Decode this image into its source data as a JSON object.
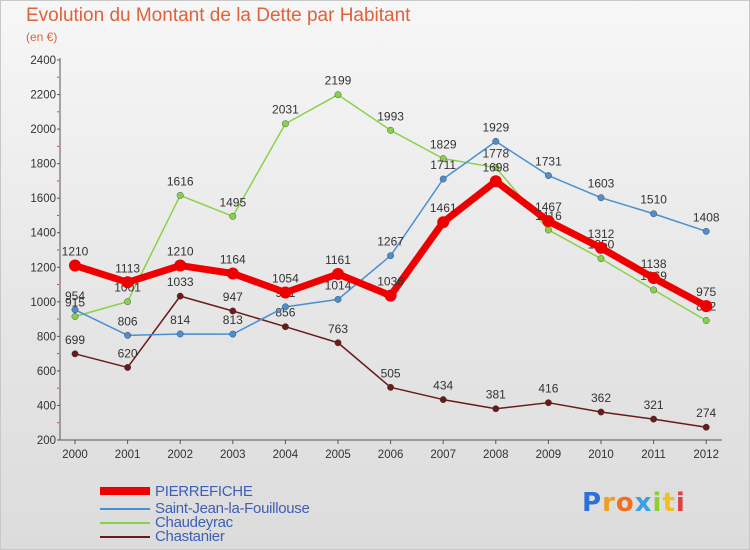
{
  "chart_data": {
    "type": "line",
    "title": "Evolution du Montant de la Dette par Habitant",
    "subtitle": "(en €)",
    "x": [
      "2000",
      "2001",
      "2002",
      "2003",
      "2004",
      "2005",
      "2006",
      "2007",
      "2008",
      "2009",
      "2010",
      "2011",
      "2012"
    ],
    "ylim": [
      200,
      2400
    ],
    "yticks": [
      "200",
      "400",
      "600",
      "800",
      "1000",
      "1200",
      "1400",
      "1600",
      "1800",
      "2000",
      "2200",
      "2400"
    ],
    "grid": false,
    "legend_position": "bottom-left",
    "series": [
      {
        "name": "Chastanier",
        "color": "#6b1a1a",
        "width": 1.5,
        "values": [
          699,
          620,
          1033,
          947,
          856,
          763,
          505,
          434,
          381,
          416,
          362,
          321,
          274
        ]
      },
      {
        "name": "Chaudeyrac",
        "color": "#88d24a",
        "width": 1.5,
        "values": [
          915,
          1001,
          1616,
          1495,
          2031,
          2199,
          1993,
          1829,
          1778,
          1416,
          1250,
          1069,
          892
        ]
      },
      {
        "name": "Saint-Jean-la-Fouillouse",
        "color": "#4a8fd2",
        "width": 1.5,
        "values": [
          954,
          806,
          814,
          813,
          971,
          1014,
          1267,
          1711,
          1929,
          1731,
          1603,
          1510,
          1408
        ]
      },
      {
        "name": "PIERREFICHE",
        "color": "#ee0000",
        "width": 7,
        "values": [
          1210,
          1113,
          1210,
          1164,
          1054,
          1161,
          1036,
          1461,
          1698,
          1467,
          1312,
          1138,
          975
        ]
      }
    ]
  },
  "legend": [
    {
      "label": "PIERREFICHE",
      "color": "#ee0000"
    },
    {
      "label": "Saint-Jean-la-Fouillouse",
      "color": "#4a8fd2"
    },
    {
      "label": "Chaudeyrac",
      "color": "#88d24a"
    },
    {
      "label": "Chastanier",
      "color": "#6b1a1a"
    }
  ],
  "logo": {
    "letters": [
      "P",
      "r",
      "o",
      "x",
      "i",
      "t",
      "i"
    ],
    "colors": [
      "#2e6fd8",
      "#f0a020",
      "#f07020",
      "#3aa0e0",
      "#8ccf30",
      "#f0c020",
      "#e04040"
    ]
  }
}
